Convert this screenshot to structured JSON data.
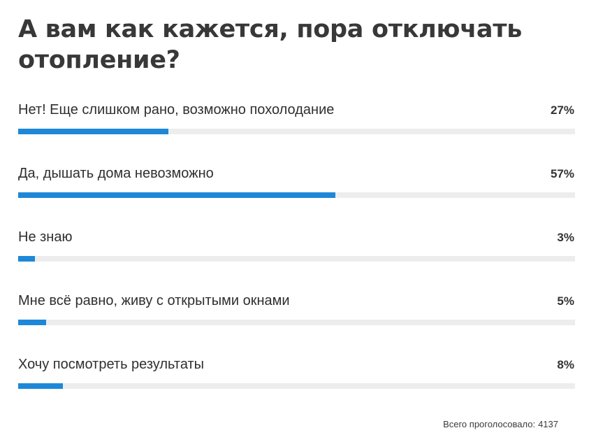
{
  "poll": {
    "title": "А вам как кажется, пора отключать отопление?",
    "accent_color": "#1e88d8",
    "track_color": "#ededed",
    "options": [
      {
        "label": "Нет! Еще слишком рано, возможно похолодание",
        "percent_label": "27%",
        "percent": 27
      },
      {
        "label": "Да, дышать дома невозможно",
        "percent_label": "57%",
        "percent": 57
      },
      {
        "label": "Не знаю",
        "percent_label": "3%",
        "percent": 3
      },
      {
        "label": "Мне всё равно, живу с открытыми окнами",
        "percent_label": "5%",
        "percent": 5
      },
      {
        "label": "Хочу посмотреть результаты",
        "percent_label": "8%",
        "percent": 8
      }
    ],
    "total_label": "Всего проголосовало:",
    "total_count": "4137"
  }
}
